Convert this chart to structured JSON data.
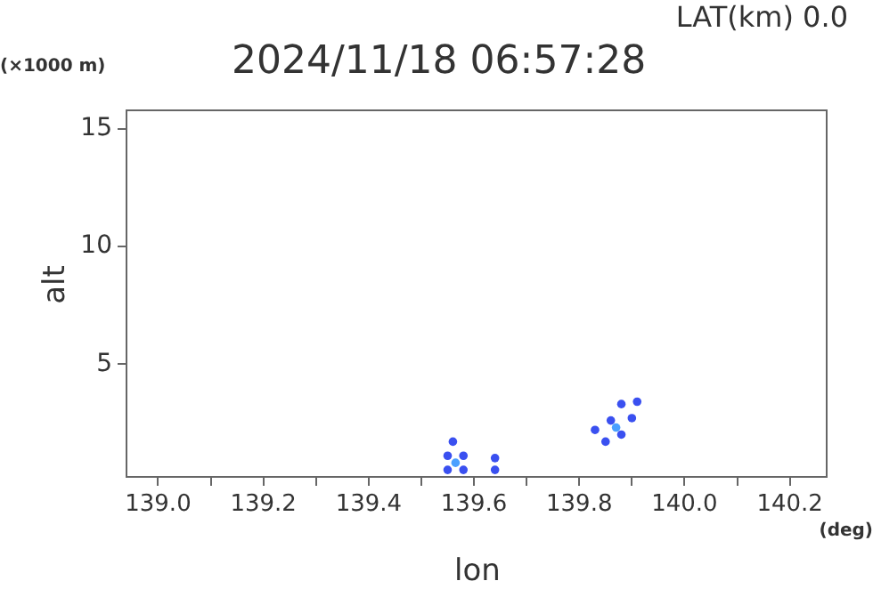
{
  "chart_data": {
    "type": "scatter",
    "title": "2024/11/18 06:57:28",
    "subtitle": "LAT(km) 0.0",
    "xlabel": "lon",
    "ylabel": "alt",
    "annotations": [
      "(×1000 m)",
      "(deg)"
    ],
    "xlim": [
      138.94,
      140.27
    ],
    "ylim": [
      0.2,
      15.8
    ],
    "xticks": [
      {
        "value": 139.0,
        "label": "139.0"
      },
      {
        "value": 139.1,
        "label": null
      },
      {
        "value": 139.2,
        "label": "139.2"
      },
      {
        "value": 139.3,
        "label": null
      },
      {
        "value": 139.4,
        "label": "139.4"
      },
      {
        "value": 139.5,
        "label": null
      },
      {
        "value": 139.6,
        "label": "139.6"
      },
      {
        "value": 139.7,
        "label": null
      },
      {
        "value": 139.8,
        "label": "139.8"
      },
      {
        "value": 139.9,
        "label": null
      },
      {
        "value": 140.0,
        "label": "140.0"
      },
      {
        "value": 140.1,
        "label": null
      },
      {
        "value": 140.2,
        "label": "140.2"
      }
    ],
    "yticks": [
      5,
      10,
      15
    ],
    "grid": false,
    "legend": false,
    "marker": "circle",
    "series": [
      {
        "color": "#3a50f0",
        "x": [
          139.55,
          139.55,
          139.56,
          139.58,
          139.58,
          139.64,
          139.64,
          139.83,
          139.85,
          139.86,
          139.88,
          139.9,
          139.91,
          139.88
        ],
        "values": [
          0.5,
          1.1,
          1.7,
          0.5,
          1.1,
          0.5,
          1.0,
          2.2,
          1.7,
          2.6,
          3.3,
          2.7,
          3.4,
          2.0
        ]
      },
      {
        "color": "#4aa0ff",
        "x": [
          139.565,
          139.87
        ],
        "values": [
          0.8,
          2.3
        ]
      }
    ]
  }
}
